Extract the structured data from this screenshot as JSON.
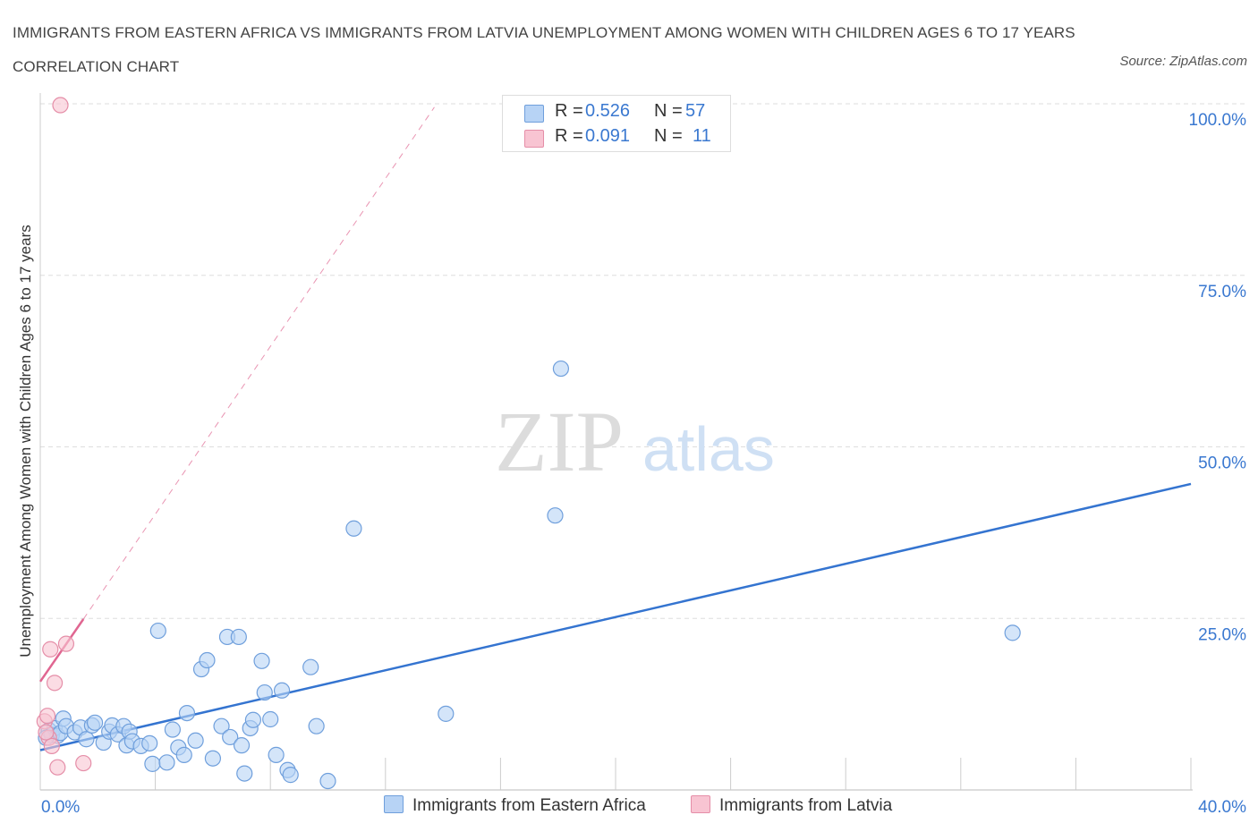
{
  "title": "IMMIGRANTS FROM EASTERN AFRICA VS IMMIGRANTS FROM LATVIA UNEMPLOYMENT AMONG WOMEN WITH CHILDREN AGES 6 TO 17 YEARS CORRELATION CHART",
  "source": "Source: ZipAtlas.com",
  "watermark": {
    "zip": "ZIP",
    "atlas": "atlas"
  },
  "legend": {
    "rows": [
      {
        "r_label": "R =",
        "r_value": "0.526",
        "n_label": "N =",
        "n_value": "57",
        "color": "#b7d3f5"
      },
      {
        "r_label": "R =",
        "r_value": "0.091",
        "n_label": "N =",
        "n_value": "11",
        "color": "#f8c4d2"
      }
    ]
  },
  "colors": {
    "blue_fill": "#b7d3f5",
    "blue_stroke": "#6f9fdc",
    "blue_line": "#3474d0",
    "pink_fill": "#f8c4d2",
    "pink_stroke": "#e58ea8",
    "pink_line": "#e06691",
    "tick_label": "#3a78d0",
    "grid": "#dddddd"
  },
  "chart_data": {
    "type": "scatter",
    "title": "IMMIGRANTS FROM EASTERN AFRICA VS IMMIGRANTS FROM LATVIA UNEMPLOYMENT AMONG WOMEN WITH CHILDREN AGES 6 TO 17 YEARS CORRELATION CHART",
    "xlabel": "",
    "ylabel": "Unemployment Among Women with Children Ages 6 to 17 years",
    "xlim": [
      0,
      40
    ],
    "ylim": [
      0,
      100
    ],
    "x_tick_labels": [
      "0.0%",
      "40.0%"
    ],
    "y_ticks": [
      25,
      50,
      75,
      100
    ],
    "y_tick_labels": [
      "25.0%",
      "50.0%",
      "75.0%",
      "100.0%"
    ],
    "grid": true,
    "legend_position": "top-center",
    "series": [
      {
        "name": "Immigrants from Eastern Africa",
        "color": "#b7d3f5",
        "points": [
          [
            0.3,
            8.7
          ],
          [
            0.4,
            8.0
          ],
          [
            0.5,
            9.0
          ],
          [
            0.6,
            7.9
          ],
          [
            0.7,
            8.3
          ],
          [
            0.8,
            10.4
          ],
          [
            0.9,
            9.3
          ],
          [
            1.2,
            8.4
          ],
          [
            1.4,
            9.1
          ],
          [
            1.6,
            7.4
          ],
          [
            1.8,
            9.4
          ],
          [
            1.9,
            9.8
          ],
          [
            2.2,
            6.9
          ],
          [
            2.4,
            8.5
          ],
          [
            2.5,
            9.4
          ],
          [
            2.7,
            8.1
          ],
          [
            2.9,
            9.3
          ],
          [
            3.0,
            6.5
          ],
          [
            3.1,
            8.5
          ],
          [
            3.2,
            7.1
          ],
          [
            3.5,
            6.4
          ],
          [
            3.8,
            6.8
          ],
          [
            3.9,
            3.8
          ],
          [
            4.1,
            23.2
          ],
          [
            4.4,
            4.0
          ],
          [
            4.6,
            8.8
          ],
          [
            4.8,
            6.2
          ],
          [
            5.0,
            5.1
          ],
          [
            5.1,
            11.2
          ],
          [
            5.4,
            7.2
          ],
          [
            5.6,
            17.6
          ],
          [
            5.8,
            18.9
          ],
          [
            6.0,
            4.6
          ],
          [
            6.3,
            9.3
          ],
          [
            6.5,
            22.3
          ],
          [
            6.6,
            7.7
          ],
          [
            6.9,
            22.3
          ],
          [
            7.0,
            6.5
          ],
          [
            7.1,
            2.4
          ],
          [
            7.3,
            9.0
          ],
          [
            7.4,
            10.2
          ],
          [
            7.7,
            18.8
          ],
          [
            7.8,
            14.2
          ],
          [
            8.0,
            10.3
          ],
          [
            8.2,
            5.1
          ],
          [
            8.4,
            14.5
          ],
          [
            8.6,
            2.9
          ],
          [
            8.7,
            2.2
          ],
          [
            9.4,
            17.9
          ],
          [
            9.6,
            9.3
          ],
          [
            10.0,
            1.3
          ],
          [
            10.9,
            38.1
          ],
          [
            14.1,
            11.1
          ],
          [
            17.9,
            40.0
          ],
          [
            18.1,
            61.4
          ],
          [
            33.8,
            22.9
          ],
          [
            0.2,
            7.6
          ]
        ]
      },
      {
        "name": "Immigrants from Latvia",
        "color": "#f8c4d2",
        "points": [
          [
            0.15,
            10.0
          ],
          [
            0.25,
            10.8
          ],
          [
            0.3,
            7.6
          ],
          [
            0.4,
            6.4
          ],
          [
            0.35,
            20.5
          ],
          [
            0.5,
            15.6
          ],
          [
            0.6,
            3.3
          ],
          [
            0.7,
            99.8
          ],
          [
            0.9,
            21.3
          ],
          [
            1.5,
            3.9
          ],
          [
            0.2,
            8.4
          ]
        ]
      }
    ],
    "trend_lines": [
      {
        "series": "Immigrants from Eastern Africa",
        "style": "solid",
        "from": [
          0,
          5.8
        ],
        "to": [
          40,
          44.6
        ]
      },
      {
        "series": "Immigrants from Latvia",
        "style": "solid",
        "from": [
          0,
          15.8
        ],
        "to": [
          1.5,
          24.9
        ]
      },
      {
        "series": "Immigrants from Latvia",
        "style": "dashed",
        "from": [
          1.5,
          24.9
        ],
        "to": [
          13.7,
          99.5
        ]
      }
    ]
  }
}
